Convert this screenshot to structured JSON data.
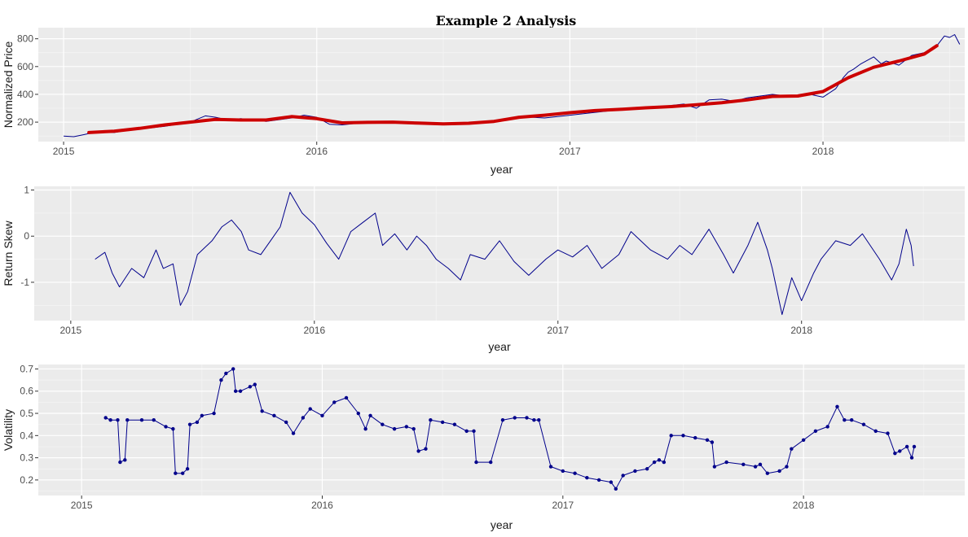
{
  "title": "Example 2 Analysis",
  "colors": {
    "panel": "#ebebeb",
    "grid_major": "#ffffff",
    "grid_minor": "#f5f5f5",
    "series": "#00008b",
    "trend": "#cc0000"
  },
  "chart_data": [
    {
      "type": "line",
      "xlabel": "year",
      "ylabel": "Normalized Price",
      "xlim": [
        2014.9,
        2018.56
      ],
      "ylim": [
        60,
        880
      ],
      "x_ticks": [
        2015,
        2016,
        2017,
        2018
      ],
      "x_tick_labels": [
        "2015",
        "2016",
        "2017",
        "2018"
      ],
      "y_ticks": [
        200,
        400,
        600,
        800
      ],
      "y_tick_labels": [
        "200",
        "400",
        "600",
        "800"
      ],
      "grid": true,
      "series": [
        {
          "style": "line",
          "color": "#00008b",
          "x": [
            2015.0,
            2015.04,
            2015.08,
            2015.13,
            2015.2,
            2015.25,
            2015.3,
            2015.4,
            2015.5,
            2015.56,
            2015.6,
            2015.65,
            2015.7,
            2015.8,
            2015.9,
            2015.95,
            2016.0,
            2016.05,
            2016.1,
            2016.2,
            2016.3,
            2016.4,
            2016.5,
            2016.6,
            2016.7,
            2016.8,
            2016.9,
            2017.0,
            2017.1,
            2017.2,
            2017.3,
            2017.4,
            2017.45,
            2017.5,
            2017.55,
            2017.6,
            2017.65,
            2017.7,
            2017.8,
            2017.9,
            2017.95,
            2018.0,
            2018.05,
            2018.08,
            2018.1,
            2018.12,
            2018.15,
            2018.2,
            2018.23,
            2018.25,
            2018.3,
            2018.35,
            2018.4,
            2018.45,
            2018.48,
            2018.5,
            2018.52,
            2018.54
          ],
          "y": [
            100,
            95,
            110,
            130,
            125,
            140,
            150,
            170,
            200,
            245,
            235,
            215,
            225,
            205,
            230,
            250,
            235,
            185,
            180,
            200,
            195,
            195,
            190,
            185,
            205,
            240,
            230,
            250,
            270,
            290,
            300,
            320,
            330,
            300,
            360,
            365,
            350,
            375,
            400,
            380,
            400,
            380,
            440,
            520,
            560,
            580,
            620,
            670,
            620,
            640,
            610,
            680,
            700,
            750,
            820,
            810,
            830,
            760
          ]
        },
        {
          "style": "trend",
          "color": "#cc0000",
          "x": [
            2015.1,
            2015.2,
            2015.3,
            2015.4,
            2015.5,
            2015.6,
            2015.7,
            2015.8,
            2015.9,
            2016.0,
            2016.1,
            2016.2,
            2016.3,
            2016.4,
            2016.5,
            2016.6,
            2016.7,
            2016.8,
            2016.9,
            2017.0,
            2017.1,
            2017.2,
            2017.3,
            2017.4,
            2017.5,
            2017.6,
            2017.7,
            2017.8,
            2017.9,
            2018.0,
            2018.1,
            2018.2,
            2018.3,
            2018.4,
            2018.45
          ],
          "y": [
            125,
            135,
            155,
            180,
            200,
            220,
            215,
            215,
            240,
            225,
            195,
            198,
            200,
            193,
            187,
            192,
            205,
            235,
            250,
            268,
            283,
            292,
            303,
            312,
            325,
            340,
            360,
            385,
            388,
            420,
            520,
            595,
            640,
            690,
            750
          ]
        }
      ]
    },
    {
      "type": "line",
      "xlabel": "year",
      "ylabel": "Return Skew",
      "xlim": [
        2014.85,
        2018.67
      ],
      "ylim": [
        -1.83,
        1.08
      ],
      "x_ticks": [
        2015,
        2016,
        2017,
        2018
      ],
      "x_tick_labels": [
        "2015",
        "2016",
        "2017",
        "2018"
      ],
      "y_ticks": [
        -1,
        0,
        1
      ],
      "y_tick_labels": [
        "-1",
        "0",
        "1"
      ],
      "grid": true,
      "series": [
        {
          "style": "line",
          "color": "#00008b",
          "x": [
            2015.1,
            2015.14,
            2015.17,
            2015.2,
            2015.25,
            2015.3,
            2015.35,
            2015.38,
            2015.42,
            2015.45,
            2015.48,
            2015.52,
            2015.58,
            2015.62,
            2015.66,
            2015.7,
            2015.73,
            2015.78,
            2015.82,
            2015.86,
            2015.9,
            2015.95,
            2016.0,
            2016.05,
            2016.1,
            2016.15,
            2016.2,
            2016.25,
            2016.28,
            2016.33,
            2016.38,
            2016.42,
            2016.46,
            2016.5,
            2016.55,
            2016.6,
            2016.64,
            2016.7,
            2016.76,
            2016.82,
            2016.88,
            2016.95,
            2017.0,
            2017.06,
            2017.12,
            2017.18,
            2017.25,
            2017.3,
            2017.38,
            2017.45,
            2017.5,
            2017.55,
            2017.62,
            2017.68,
            2017.72,
            2017.78,
            2017.82,
            2017.86,
            2017.88,
            2017.92,
            2017.96,
            2018.0,
            2018.05,
            2018.08,
            2018.14,
            2018.2,
            2018.25,
            2018.32,
            2018.37,
            2018.4,
            2018.43,
            2018.45,
            2018.46
          ],
          "y": [
            -0.5,
            -0.35,
            -0.8,
            -1.1,
            -0.7,
            -0.9,
            -0.3,
            -0.7,
            -0.6,
            -1.5,
            -1.2,
            -0.4,
            -0.1,
            0.2,
            0.35,
            0.1,
            -0.3,
            -0.4,
            -0.1,
            0.2,
            0.95,
            0.5,
            0.25,
            -0.15,
            -0.5,
            0.1,
            0.3,
            0.5,
            -0.2,
            0.05,
            -0.3,
            0.0,
            -0.2,
            -0.5,
            -0.7,
            -0.95,
            -0.4,
            -0.5,
            -0.1,
            -0.55,
            -0.85,
            -0.5,
            -0.3,
            -0.45,
            -0.2,
            -0.7,
            -0.4,
            0.1,
            -0.3,
            -0.5,
            -0.2,
            -0.4,
            0.15,
            -0.4,
            -0.8,
            -0.2,
            0.3,
            -0.3,
            -0.7,
            -1.7,
            -0.9,
            -1.4,
            -0.8,
            -0.5,
            -0.1,
            -0.2,
            0.05,
            -0.5,
            -0.95,
            -0.6,
            0.15,
            -0.2,
            -0.65
          ]
        }
      ]
    },
    {
      "type": "line",
      "xlabel": "year",
      "ylabel": "Volatility",
      "xlim": [
        2014.82,
        2018.67
      ],
      "ylim": [
        0.13,
        0.72
      ],
      "x_ticks": [
        2015,
        2016,
        2017,
        2018
      ],
      "x_tick_labels": [
        "2015",
        "2016",
        "2017",
        "2018"
      ],
      "y_ticks": [
        0.2,
        0.3,
        0.4,
        0.5,
        0.6,
        0.7
      ],
      "y_tick_labels": [
        "0.2",
        "0.3",
        "0.4",
        "0.5",
        "0.6",
        "0.7"
      ],
      "grid": true,
      "series": [
        {
          "style": "line-points",
          "color": "#00008b",
          "x": [
            2015.1,
            2015.12,
            2015.15,
            2015.16,
            2015.18,
            2015.19,
            2015.25,
            2015.3,
            2015.35,
            2015.38,
            2015.39,
            2015.42,
            2015.44,
            2015.45,
            2015.48,
            2015.5,
            2015.55,
            2015.58,
            2015.6,
            2015.63,
            2015.64,
            2015.66,
            2015.7,
            2015.72,
            2015.75,
            2015.8,
            2015.85,
            2015.88,
            2015.92,
            2015.95,
            2016.0,
            2016.05,
            2016.1,
            2016.15,
            2016.18,
            2016.2,
            2016.25,
            2016.3,
            2016.35,
            2016.38,
            2016.4,
            2016.43,
            2016.45,
            2016.5,
            2016.55,
            2016.6,
            2016.63,
            2016.64,
            2016.7,
            2016.75,
            2016.8,
            2016.85,
            2016.88,
            2016.9,
            2016.95,
            2017.0,
            2017.05,
            2017.1,
            2017.15,
            2017.2,
            2017.22,
            2017.25,
            2017.3,
            2017.35,
            2017.38,
            2017.4,
            2017.42,
            2017.45,
            2017.5,
            2017.55,
            2017.6,
            2017.62,
            2017.63,
            2017.68,
            2017.75,
            2017.8,
            2017.82,
            2017.85,
            2017.9,
            2017.93,
            2017.95,
            2018.0,
            2018.05,
            2018.1,
            2018.14,
            2018.17,
            2018.2,
            2018.25,
            2018.3,
            2018.35,
            2018.38,
            2018.4,
            2018.43,
            2018.45,
            2018.46
          ],
          "y": [
            0.48,
            0.47,
            0.47,
            0.28,
            0.29,
            0.47,
            0.47,
            0.47,
            0.44,
            0.43,
            0.23,
            0.23,
            0.25,
            0.45,
            0.46,
            0.49,
            0.5,
            0.65,
            0.68,
            0.7,
            0.6,
            0.6,
            0.62,
            0.63,
            0.51,
            0.49,
            0.46,
            0.41,
            0.48,
            0.52,
            0.49,
            0.55,
            0.57,
            0.5,
            0.43,
            0.49,
            0.45,
            0.43,
            0.44,
            0.43,
            0.33,
            0.34,
            0.47,
            0.46,
            0.45,
            0.42,
            0.42,
            0.28,
            0.28,
            0.47,
            0.48,
            0.48,
            0.47,
            0.47,
            0.26,
            0.24,
            0.23,
            0.21,
            0.2,
            0.19,
            0.16,
            0.22,
            0.24,
            0.25,
            0.28,
            0.29,
            0.28,
            0.4,
            0.4,
            0.39,
            0.38,
            0.37,
            0.26,
            0.28,
            0.27,
            0.26,
            0.27,
            0.23,
            0.24,
            0.26,
            0.34,
            0.38,
            0.42,
            0.44,
            0.53,
            0.47,
            0.47,
            0.45,
            0.42,
            0.41,
            0.32,
            0.33,
            0.35,
            0.3,
            0.35
          ]
        }
      ]
    }
  ]
}
